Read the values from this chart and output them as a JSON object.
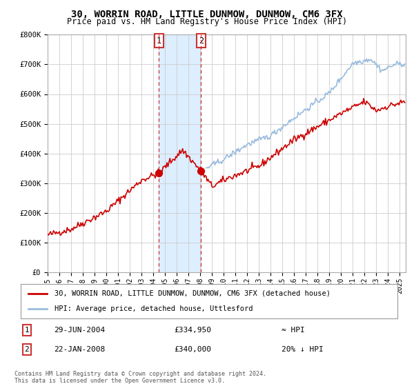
{
  "title": "30, WORRIN ROAD, LITTLE DUNMOW, DUNMOW, CM6 3FX",
  "subtitle": "Price paid vs. HM Land Registry's House Price Index (HPI)",
  "legend_label_red": "30, WORRIN ROAD, LITTLE DUNMOW, DUNMOW, CM6 3FX (detached house)",
  "legend_label_blue": "HPI: Average price, detached house, Uttlesford",
  "transaction1_label": "29-JUN-2004",
  "transaction1_price": "£334,950",
  "transaction1_hpi": "≈ HPI",
  "transaction2_label": "22-JAN-2008",
  "transaction2_price": "£340,000",
  "transaction2_hpi": "20% ↓ HPI",
  "footnote": "Contains HM Land Registry data © Crown copyright and database right 2024.\nThis data is licensed under the Open Government Licence v3.0.",
  "ylim": [
    0,
    800000
  ],
  "xlim_start": 1995.0,
  "xlim_end": 2025.5,
  "transaction1_x": 2004.49,
  "transaction2_x": 2008.07,
  "transaction1_y": 334950,
  "transaction2_y": 340000,
  "red_color": "#cc0000",
  "blue_color": "#99bbdd",
  "shade_color": "#ddeeff",
  "box_color": "#cc3333"
}
